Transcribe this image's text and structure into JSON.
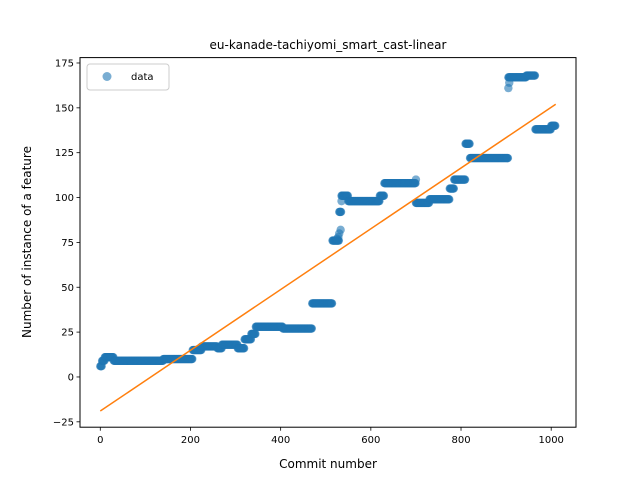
{
  "chart_data": {
    "type": "scatter",
    "title": "eu-kanade-tachiyomi_smart_cast-linear",
    "xlabel": "Commit number",
    "ylabel": "Number of instance of a feature",
    "xlim": [
      -45,
      1055
    ],
    "ylim": [
      -28,
      178
    ],
    "xticks": [
      0,
      200,
      400,
      600,
      800,
      1000
    ],
    "yticks": [
      -25,
      0,
      25,
      50,
      75,
      100,
      125,
      150,
      175
    ],
    "grid": false,
    "legend": {
      "position": "top-left",
      "entries": [
        "data"
      ]
    },
    "colors": {
      "data": "#1f77b4",
      "fit": "#ff7f0e"
    },
    "series": [
      {
        "name": "data",
        "kind": "scatter",
        "segments": [
          {
            "x0": 0,
            "x1": 4,
            "y": 6
          },
          {
            "x0": 4,
            "x1": 10,
            "y": 9
          },
          {
            "x0": 10,
            "x1": 30,
            "y": 11
          },
          {
            "x0": 30,
            "x1": 140,
            "y": 9
          },
          {
            "x0": 140,
            "x1": 205,
            "y": 10
          },
          {
            "x0": 205,
            "x1": 225,
            "y": 15
          },
          {
            "x0": 225,
            "x1": 260,
            "y": 17
          },
          {
            "x0": 260,
            "x1": 270,
            "y": 16
          },
          {
            "x0": 270,
            "x1": 305,
            "y": 18
          },
          {
            "x0": 305,
            "x1": 320,
            "y": 16
          },
          {
            "x0": 320,
            "x1": 335,
            "y": 21
          },
          {
            "x0": 335,
            "x1": 345,
            "y": 24
          },
          {
            "x0": 345,
            "x1": 405,
            "y": 28
          },
          {
            "x0": 405,
            "x1": 470,
            "y": 27
          },
          {
            "x0": 470,
            "x1": 515,
            "y": 41
          },
          {
            "x0": 515,
            "x1": 530,
            "y": 76
          },
          {
            "x0": 530,
            "x1": 535,
            "y": 92
          },
          {
            "x0": 535,
            "x1": 550,
            "y": 101
          },
          {
            "x0": 550,
            "x1": 620,
            "y": 98
          },
          {
            "x0": 620,
            "x1": 630,
            "y": 101
          },
          {
            "x0": 630,
            "x1": 700,
            "y": 108
          },
          {
            "x0": 700,
            "x1": 730,
            "y": 97
          },
          {
            "x0": 730,
            "x1": 775,
            "y": 99
          },
          {
            "x0": 775,
            "x1": 785,
            "y": 105
          },
          {
            "x0": 785,
            "x1": 810,
            "y": 110
          },
          {
            "x0": 810,
            "x1": 820,
            "y": 130
          },
          {
            "x0": 820,
            "x1": 905,
            "y": 122
          },
          {
            "x0": 905,
            "x1": 930,
            "y": 167
          },
          {
            "x0": 930,
            "x1": 945,
            "y": 167
          },
          {
            "x0": 945,
            "x1": 965,
            "y": 168
          },
          {
            "x0": 965,
            "x1": 1000,
            "y": 138
          },
          {
            "x0": 1000,
            "x1": 1010,
            "y": 140
          }
        ],
        "extra_points": [
          [
            530,
            80
          ],
          [
            533,
            82
          ],
          [
            535,
            98
          ],
          [
            700,
            110
          ],
          [
            905,
            161
          ],
          [
            907,
            164
          ],
          [
            525,
            77
          ],
          [
            528,
            78
          ]
        ]
      },
      {
        "name": "",
        "kind": "line",
        "x": [
          0,
          1010
        ],
        "y": [
          -19,
          152
        ]
      }
    ]
  }
}
